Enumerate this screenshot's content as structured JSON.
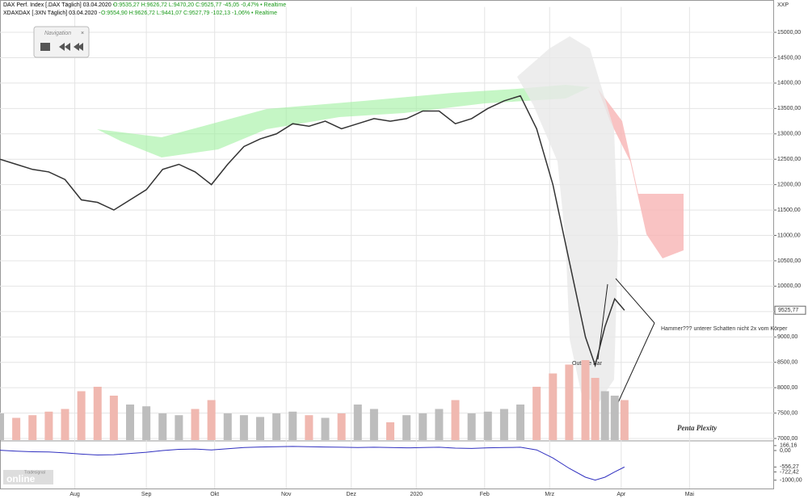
{
  "chart_data": {
    "type": "line",
    "header": [
      "DAX Perf. Index [.DAX Täglich] 03.04.2020 - ",
      "O:9535,27 H:9626,72 L:9470,20 C:9525,77 -45,05 -0,47% • Realtime",
      "XDAXDAX [.3XN Täglich] 03.04.2020 - ",
      "O:9554,90 H:9626,72 L:9441,07 C:9527,79 -102,13 -1,06% • Realtime"
    ],
    "navigation": {
      "title": "Navigation",
      "close": "×"
    },
    "axis_unit": "XXP",
    "last_price": {
      "value": 9525.77,
      "label": "9525,77"
    },
    "annotations": [
      "Hammer??? unterer Schatten nicht 2x vom Körper",
      "Outside Bar",
      "Penta Plexity"
    ],
    "logo": [
      "Tradesignal",
      "online"
    ],
    "x": [
      0,
      5,
      10,
      15,
      20,
      25,
      30,
      35,
      40,
      45,
      50,
      55,
      60,
      65,
      70,
      75,
      80,
      85,
      90,
      95,
      100,
      105,
      110,
      115,
      120,
      125,
      130,
      135,
      140,
      145,
      150,
      155,
      160,
      165,
      170,
      175,
      180,
      183,
      186,
      189,
      192
    ],
    "series": [
      {
        "name": "DAX",
        "color": "#333333",
        "values": [
          12500,
          12400,
          12300,
          12250,
          12100,
          11700,
          11650,
          11500,
          11700,
          11900,
          12300,
          12400,
          12250,
          12000,
          12400,
          12750,
          12900,
          13000,
          13200,
          13150,
          13250,
          13100,
          13200,
          13300,
          13250,
          13300,
          13450,
          13450,
          13200,
          13300,
          13500,
          13650,
          13750,
          13100,
          12000,
          10500,
          9000,
          8440,
          9200,
          9750,
          9525.77
        ]
      }
    ],
    "volume": {
      "colors": [
        "#bdbdbd",
        "#f0b8b0"
      ],
      "ylim": [
        0,
        100
      ],
      "values": [
        30,
        25,
        28,
        32,
        35,
        55,
        60,
        50,
        40,
        38,
        30,
        28,
        35,
        45,
        30,
        28,
        26,
        30,
        32,
        28,
        25,
        30,
        40,
        35,
        20,
        28,
        30,
        35,
        45,
        30,
        32,
        35,
        40,
        60,
        75,
        85,
        90,
        70,
        55,
        50,
        45
      ]
    },
    "xlim": [
      0,
      238
    ],
    "xticks": [
      {
        "value": 23,
        "label": "Aug"
      },
      {
        "value": 45,
        "label": "Sep"
      },
      {
        "value": 66,
        "label": "Okt"
      },
      {
        "value": 88,
        "label": "Nov"
      },
      {
        "value": 108,
        "label": "Dez"
      },
      {
        "value": 128,
        "label": "2020"
      },
      {
        "value": 149,
        "label": "Feb"
      },
      {
        "value": 169,
        "label": "Mrz"
      },
      {
        "value": 191,
        "label": "Apr"
      },
      {
        "value": 212,
        "label": "Mai"
      }
    ],
    "ylim": [
      7000,
      15500
    ],
    "yticks": [
      {
        "value": 7000,
        "label": "7000,00"
      },
      {
        "value": 7500,
        "label": "7500,00"
      },
      {
        "value": 8000,
        "label": "8000,00"
      },
      {
        "value": 8500,
        "label": "8500,00"
      },
      {
        "value": 9000,
        "label": "9000,00"
      },
      {
        "value": 9500,
        "label": "9500,00"
      },
      {
        "value": 10000,
        "label": "10000,00"
      },
      {
        "value": 10500,
        "label": "10500,00"
      },
      {
        "value": 11000,
        "label": "11000,00"
      },
      {
        "value": 11500,
        "label": "11500,00"
      },
      {
        "value": 12000,
        "label": "12000,00"
      },
      {
        "value": 12500,
        "label": "12500,00"
      },
      {
        "value": 13000,
        "label": "13000,00"
      },
      {
        "value": 13500,
        "label": "13500,00"
      },
      {
        "value": 14000,
        "label": "14000,00"
      },
      {
        "value": 14500,
        "label": "14500,00"
      },
      {
        "value": 15000,
        "label": "15000,00"
      }
    ],
    "indicator": {
      "color": "#3030c0",
      "ylim": [
        -1200,
        250
      ],
      "yticks": [
        {
          "value": 166.16,
          "label": "166,16"
        },
        {
          "value": 0,
          "label": "0,00"
        },
        {
          "value": -556.27,
          "label": "-556,27"
        },
        {
          "value": -722.42,
          "label": "-722,42"
        },
        {
          "value": -1000,
          "label": "-1000,00"
        }
      ],
      "values": [
        10,
        -20,
        -40,
        -50,
        -80,
        -120,
        -150,
        -140,
        -100,
        -60,
        0,
        40,
        50,
        20,
        60,
        100,
        120,
        130,
        140,
        130,
        120,
        110,
        100,
        110,
        100,
        90,
        100,
        110,
        80,
        70,
        90,
        100,
        110,
        20,
        -250,
        -600,
        -900,
        -1000,
        -900,
        -722.42,
        -556.27
      ]
    }
  }
}
